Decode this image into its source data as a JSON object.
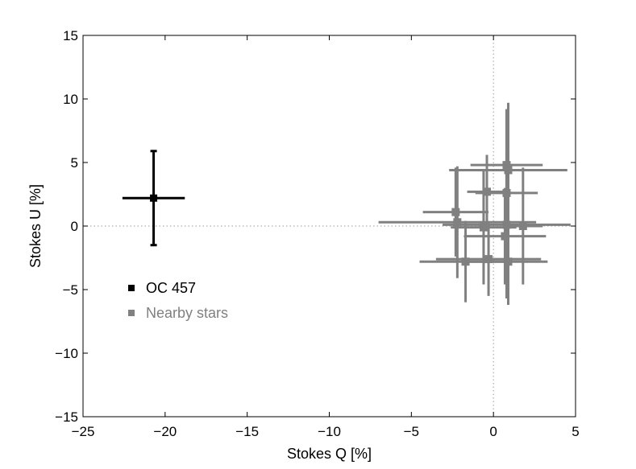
{
  "chart_data": {
    "type": "scatter",
    "xlabel": "Stokes Q [%]",
    "ylabel": "Stokes U [%]",
    "xlim": [
      -25,
      5
    ],
    "ylim": [
      -15,
      15
    ],
    "xticks": [
      -25,
      -20,
      -15,
      -10,
      -5,
      0,
      5
    ],
    "yticks": [
      -15,
      -10,
      -5,
      0,
      5,
      10,
      15
    ],
    "xtick_labels": [
      "−25",
      "−20",
      "−15",
      "−10",
      "−5",
      "0",
      "5"
    ],
    "ytick_labels": [
      "−15",
      "−10",
      "−5",
      "0",
      "5",
      "10",
      "15"
    ],
    "grid": false,
    "zero_lines": true,
    "legend_position": "lower-left",
    "series": [
      {
        "name": "OC 457",
        "color": "#000000",
        "marker": "square",
        "points": [
          {
            "x": -20.7,
            "y": 2.2,
            "xerr": 1.9,
            "yerr": 3.7
          }
        ]
      },
      {
        "name": "Nearby stars",
        "color": "#808080",
        "marker": "square",
        "points": [
          {
            "x": 0.8,
            "y": 4.8,
            "xerr": 2.2,
            "yerr": 4.4
          },
          {
            "x": 0.9,
            "y": 4.4,
            "xerr": 3.6,
            "yerr": 5.3
          },
          {
            "x": -0.4,
            "y": 2.7,
            "xerr": 1.2,
            "yerr": 2.9
          },
          {
            "x": 0.8,
            "y": 2.6,
            "xerr": 1.9,
            "yerr": 6.5
          },
          {
            "x": -2.3,
            "y": 1.1,
            "xerr": 2.0,
            "yerr": 3.5
          },
          {
            "x": -2.2,
            "y": 0.3,
            "xerr": 4.8,
            "yerr": 4.4
          },
          {
            "x": -0.6,
            "y": -0.1,
            "xerr": 2.0,
            "yerr": 4.5
          },
          {
            "x": 0.8,
            "y": 0.1,
            "xerr": 3.9,
            "yerr": 5.8
          },
          {
            "x": 1.8,
            "y": 0.0,
            "xerr": 1.2,
            "yerr": 4.6
          },
          {
            "x": 0.7,
            "y": -0.8,
            "xerr": 2.5,
            "yerr": 3.8
          },
          {
            "x": -1.7,
            "y": -2.8,
            "xerr": 2.8,
            "yerr": 3.2
          },
          {
            "x": -0.3,
            "y": -2.6,
            "xerr": 3.2,
            "yerr": 2.9
          },
          {
            "x": 0.9,
            "y": -2.8,
            "xerr": 2.4,
            "yerr": 3.4
          }
        ]
      }
    ]
  }
}
